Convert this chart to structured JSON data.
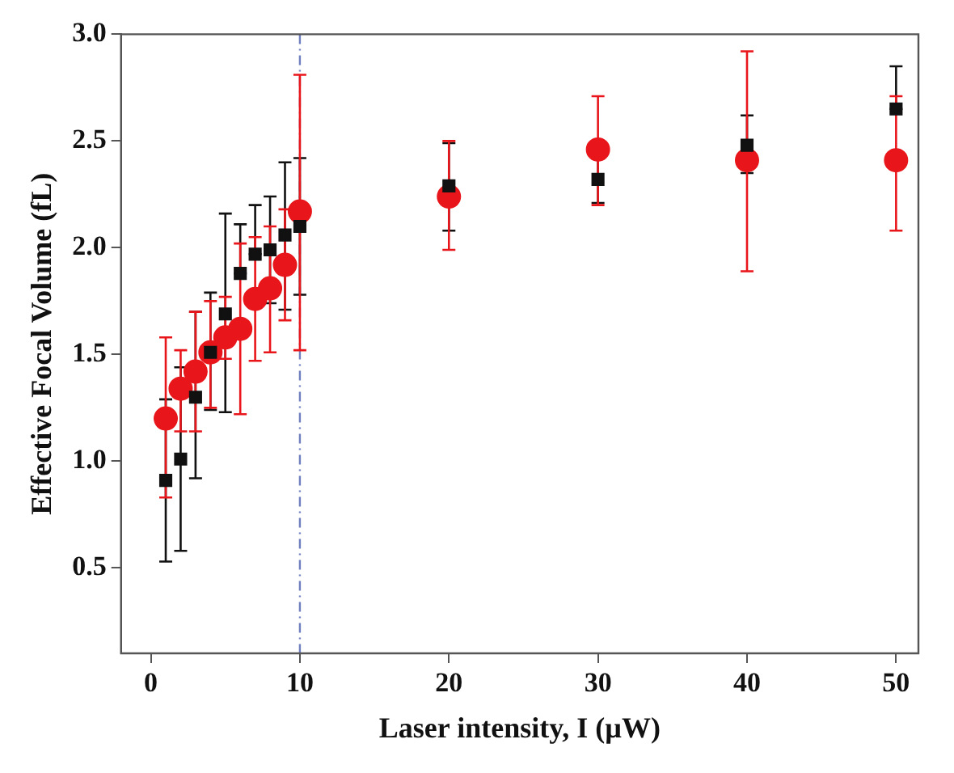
{
  "chart_data": {
    "type": "scatter",
    "xlabel": "Laser intensity, I (µW)",
    "ylabel": "Effective Focal Volume (fL)",
    "xlim": [
      -2,
      51.5
    ],
    "ylim": [
      0.1,
      3.0
    ],
    "xticks": [
      0,
      10,
      20,
      30,
      40,
      50
    ],
    "yticks": [
      0.5,
      {
        "value": 1,
        "label": "1.0"
      },
      1.5,
      {
        "value": 2,
        "label": "2.0"
      },
      2.5,
      {
        "value": 3,
        "label": "3.0"
      }
    ],
    "grid": false,
    "ref_lines": [
      {
        "axis": "x",
        "value": 10,
        "color": "#6f7fc0",
        "line_style": "dashed"
      }
    ],
    "series": [
      {
        "color": "#111111",
        "marker": "square",
        "x": [
          1,
          2,
          3,
          4,
          5,
          6,
          7,
          8,
          9,
          10,
          20,
          30,
          40,
          50
        ],
        "values": [
          0.91,
          1.01,
          1.3,
          1.51,
          1.69,
          1.88,
          1.97,
          1.99,
          2.06,
          2.1,
          2.29,
          2.32,
          2.48,
          2.65
        ],
        "errors": [
          [
            0.53,
            1.29
          ],
          [
            0.58,
            1.44
          ],
          [
            0.92,
            1.7
          ],
          [
            1.24,
            1.79
          ],
          [
            1.23,
            2.16
          ],
          [
            1.88,
            2.11
          ],
          [
            1.97,
            2.2
          ],
          [
            1.74,
            2.24
          ],
          [
            1.71,
            2.4
          ],
          [
            1.78,
            2.42
          ],
          [
            2.08,
            2.49
          ],
          [
            2.21,
            2.43
          ],
          [
            2.35,
            2.62
          ],
          [
            2.65,
            2.85
          ]
        ]
      },
      {
        "color": "#e8161b",
        "marker": "circle",
        "x": [
          1,
          2,
          3,
          4,
          5,
          6,
          7,
          8,
          9,
          10,
          20,
          30,
          40,
          50
        ],
        "values": [
          1.2,
          1.34,
          1.42,
          1.51,
          1.58,
          1.62,
          1.76,
          1.81,
          1.92,
          2.17,
          2.24,
          2.46,
          2.41,
          2.41
        ],
        "errors": [
          [
            0.83,
            1.58
          ],
          [
            1.14,
            1.52
          ],
          [
            1.14,
            1.7
          ],
          [
            1.25,
            1.75
          ],
          [
            1.48,
            1.77
          ],
          [
            1.22,
            2.02
          ],
          [
            1.47,
            2.05
          ],
          [
            1.51,
            2.1
          ],
          [
            1.66,
            2.18
          ],
          [
            1.52,
            2.81
          ],
          [
            1.99,
            2.5
          ],
          [
            2.2,
            2.71
          ],
          [
            1.89,
            2.92
          ],
          [
            2.08,
            2.71
          ]
        ]
      }
    ]
  }
}
